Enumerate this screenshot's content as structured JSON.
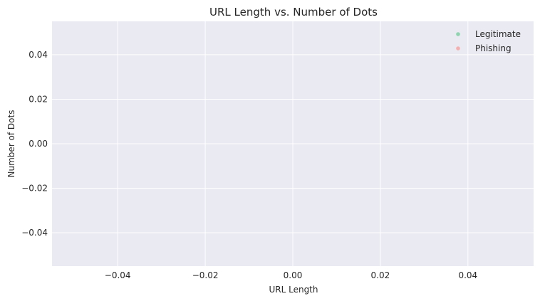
{
  "chart_data": {
    "type": "scatter",
    "title": "URL Length vs. Number of Dots",
    "xlabel": "URL Length",
    "ylabel": "Number of Dots",
    "xlim": [
      -0.055,
      0.055
    ],
    "ylim": [
      -0.055,
      0.055
    ],
    "x_ticks": [
      -0.04,
      -0.02,
      0.0,
      0.02,
      0.04
    ],
    "x_tick_labels": [
      "−0.04",
      "−0.02",
      "0.00",
      "0.02",
      "0.04"
    ],
    "y_ticks": [
      -0.04,
      -0.02,
      0.0,
      0.02,
      0.04
    ],
    "y_tick_labels": [
      "−0.04",
      "−0.02",
      "0.00",
      "0.02",
      "0.04"
    ],
    "grid": true,
    "legend_position": "top-right",
    "series": [
      {
        "name": "Legitimate",
        "color": "#8fd3b0",
        "points": []
      },
      {
        "name": "Phishing",
        "color": "#f4b0b0",
        "points": []
      }
    ]
  }
}
